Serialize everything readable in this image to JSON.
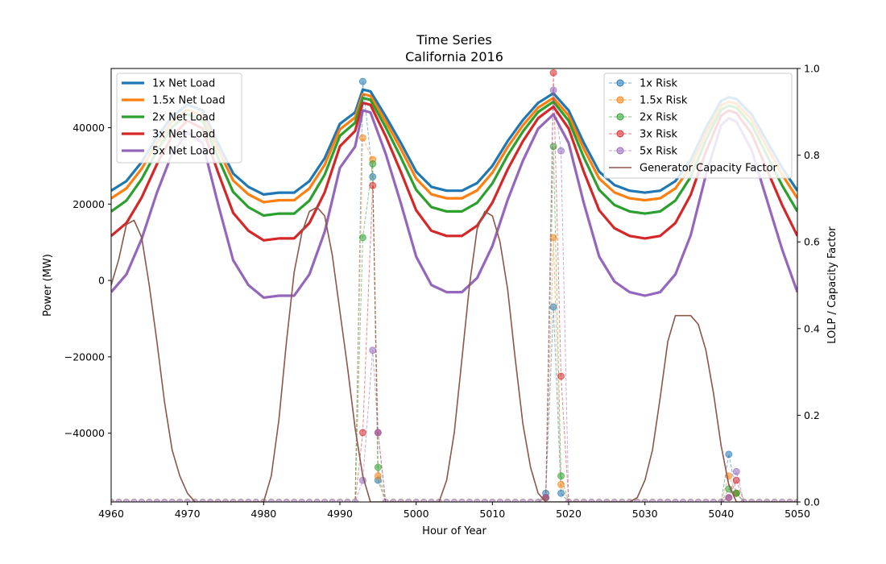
{
  "chart_data": {
    "type": "line",
    "title": "Time Series",
    "subtitle": "California 2016",
    "xlabel": "Hour of Year",
    "ylabel": "Power (MW)",
    "ylabel_right": "LOLP / Capacity Factor",
    "xlim": [
      4960,
      5050
    ],
    "ylim": [
      -58000,
      55500
    ],
    "ylim_right": [
      0,
      1
    ],
    "x_ticks": [
      4960,
      4970,
      4980,
      4990,
      5000,
      5010,
      5020,
      5030,
      5040,
      5050
    ],
    "y_ticks": [
      -40000,
      -20000,
      0,
      20000,
      40000
    ],
    "y_right_ticks": [
      0.0,
      0.2,
      0.4,
      0.6,
      0.8,
      1.0
    ],
    "x_tick_labels": [
      "4960",
      "4970",
      "4980",
      "4990",
      "5000",
      "5010",
      "5020",
      "5030",
      "5040",
      "5050"
    ],
    "y_tick_labels": [
      "−40000",
      "−20000",
      "0",
      "20000",
      "40000"
    ],
    "y_right_tick_labels": [
      "0.0",
      "0.2",
      "0.4",
      "0.6",
      "0.8",
      "1.0"
    ],
    "grid": false,
    "legend_left_placement": "upper-left",
    "legend_right_placement": "upper-right",
    "net_load_series": [
      {
        "name": "1x Net Load",
        "color": "#1f77b4"
      },
      {
        "name": "1.5x Net Load",
        "color": "#ff7f0e"
      },
      {
        "name": "2x Net Load",
        "color": "#2ca02c"
      },
      {
        "name": "3x Net Load",
        "color": "#d62728"
      },
      {
        "name": "5x Net Load",
        "color": "#9467bd"
      }
    ],
    "net_load_base": {
      "x": [
        4960,
        4962,
        4964,
        4966,
        4968,
        4970,
        4972,
        4974,
        4976,
        4978,
        4980,
        4982,
        4984,
        4986,
        4988,
        4990,
        4992,
        4993,
        4994,
        4996,
        4998,
        5000,
        5002,
        5004,
        5006,
        5008,
        5010,
        5012,
        5014,
        5016,
        5018,
        5020,
        5022,
        5024,
        5026,
        5028,
        5030,
        5032,
        5034,
        5036,
        5038,
        5040,
        5041,
        5042,
        5044,
        5046,
        5048,
        5050
      ],
      "values": [
        23500,
        26000,
        31000,
        37500,
        43000,
        46000,
        44500,
        36000,
        28000,
        24500,
        22500,
        23000,
        23000,
        26000,
        32000,
        41000,
        44000,
        50000,
        49500,
        43000,
        36000,
        28500,
        24500,
        23500,
        23500,
        25500,
        30000,
        36500,
        42000,
        46500,
        49000,
        44500,
        36000,
        28500,
        25000,
        23500,
        23000,
        23500,
        26000,
        31500,
        40000,
        47000,
        48000,
        47500,
        43500,
        36500,
        29500,
        23500
      ]
    },
    "net_load_dip_scale": [
      0,
      2000,
      5500,
      12000,
      27000
    ],
    "net_load_peak_offset": [
      0,
      1200,
      2200,
      3500,
      5500
    ],
    "risk_series": [
      {
        "name": "1x Risk",
        "color": "#1f77b4",
        "x": [
          4993,
          4994.3,
          4995,
          5017,
          5018,
          5019,
          5041,
          5042
        ],
        "values": [
          0.97,
          0.75,
          0.05,
          0.02,
          0.45,
          0.02,
          0.11,
          0.02
        ]
      },
      {
        "name": "1.5x Risk",
        "color": "#ff7f0e",
        "x": [
          4993,
          4994.3,
          4995,
          5017,
          5018,
          5019,
          5041,
          5042
        ],
        "values": [
          0.84,
          0.79,
          0.06,
          0.01,
          0.61,
          0.04,
          0.06,
          0.02
        ]
      },
      {
        "name": "2x Risk",
        "color": "#2ca02c",
        "x": [
          4993,
          4994.3,
          4995,
          5017,
          5018,
          5019,
          5041,
          5042
        ],
        "values": [
          0.61,
          0.78,
          0.08,
          0.01,
          0.82,
          0.06,
          0.03,
          0.02
        ]
      },
      {
        "name": "3x Risk",
        "color": "#d62728",
        "x": [
          4993,
          4994.3,
          4995,
          5017,
          5018,
          5019,
          5041,
          5042
        ],
        "values": [
          0.16,
          0.73,
          0.16,
          0.01,
          0.99,
          0.29,
          0.01,
          0.05
        ]
      },
      {
        "name": "5x Risk",
        "color": "#9467bd",
        "x": [
          4993,
          4994.3,
          4995,
          5017,
          5018,
          5019,
          5041,
          5042
        ],
        "values": [
          0.05,
          0.35,
          0.16,
          0.01,
          0.95,
          0.81,
          0.01,
          0.07
        ]
      }
    ],
    "capacity_factor": {
      "name": "Generator Capacity Factor",
      "color": "#8c564b",
      "x": [
        4960,
        4961,
        4962,
        4963,
        4964,
        4965,
        4966,
        4967,
        4968,
        4969,
        4970,
        4971,
        4980,
        4981,
        4982,
        4983,
        4984,
        4985,
        4986,
        4987,
        4988,
        4989,
        4990,
        4991,
        4992,
        4993,
        4994,
        5003,
        5004,
        5005,
        5006,
        5007,
        5008,
        5009,
        5010,
        5011,
        5012,
        5013,
        5014,
        5015,
        5016,
        5017,
        5018,
        5028,
        5029,
        5030,
        5031,
        5032,
        5033,
        5034,
        5035,
        5036,
        5037,
        5038,
        5039,
        5040,
        5041,
        5042,
        5050
      ],
      "values": [
        0.5,
        0.56,
        0.64,
        0.65,
        0.61,
        0.5,
        0.37,
        0.23,
        0.12,
        0.06,
        0.02,
        0.0,
        0.0,
        0.06,
        0.19,
        0.37,
        0.53,
        0.62,
        0.67,
        0.68,
        0.66,
        0.57,
        0.44,
        0.31,
        0.17,
        0.06,
        0.0,
        0.0,
        0.05,
        0.16,
        0.33,
        0.5,
        0.63,
        0.67,
        0.66,
        0.6,
        0.49,
        0.33,
        0.18,
        0.08,
        0.02,
        0.0,
        0.0,
        0.0,
        0.01,
        0.05,
        0.12,
        0.24,
        0.37,
        0.43,
        0.43,
        0.43,
        0.41,
        0.35,
        0.25,
        0.13,
        0.04,
        0.0,
        0.0
      ]
    }
  }
}
